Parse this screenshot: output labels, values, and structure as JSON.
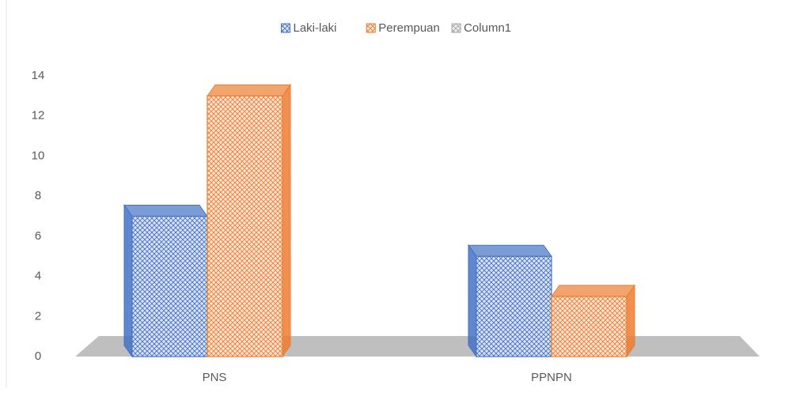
{
  "chart_data": {
    "type": "bar3d",
    "categories": [
      "PNS",
      "PPNPN"
    ],
    "series": [
      {
        "name": "Laki-laki",
        "color": "#4472c4",
        "values": [
          7,
          5
        ]
      },
      {
        "name": "Perempuan",
        "color": "#ed7d31",
        "values": [
          13,
          3
        ]
      },
      {
        "name": "Column1",
        "color": "#a5a5a5",
        "values": [
          null,
          null
        ]
      }
    ],
    "ylim": [
      0,
      14
    ],
    "yticks": [
      0,
      2,
      4,
      6,
      8,
      10,
      12,
      14
    ],
    "legend": "top"
  }
}
